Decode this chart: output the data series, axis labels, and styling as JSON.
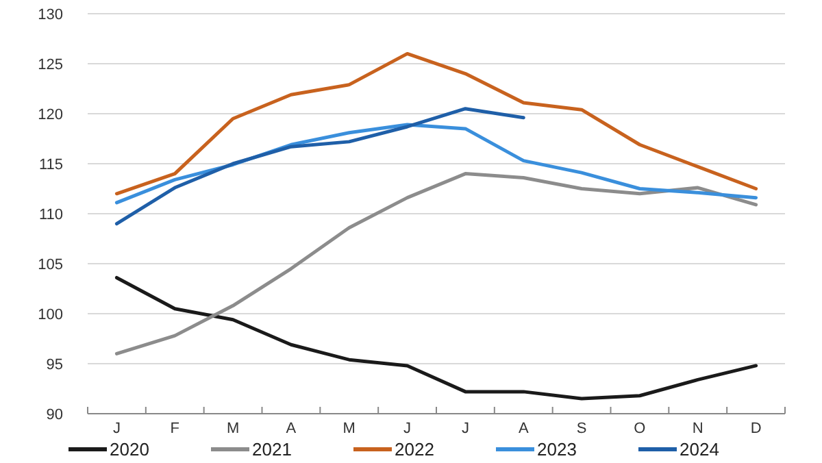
{
  "chart_data": {
    "type": "line",
    "categories": [
      "J",
      "F",
      "M",
      "A",
      "M",
      "J",
      "J",
      "A",
      "S",
      "O",
      "N",
      "D"
    ],
    "series": [
      {
        "name": "2020",
        "color": "#1a1a1a",
        "values": [
          103.6,
          100.5,
          99.4,
          96.9,
          95.4,
          94.8,
          92.2,
          92.2,
          91.5,
          91.8,
          93.4,
          94.8
        ]
      },
      {
        "name": "2021",
        "color": "#8c8c8c",
        "values": [
          96,
          97.8,
          100.8,
          104.5,
          108.6,
          111.6,
          114,
          113.6,
          112.5,
          112,
          112.6,
          110.9
        ]
      },
      {
        "name": "2022",
        "color": "#c8621e",
        "values": [
          112,
          114,
          119.5,
          121.9,
          122.9,
          126,
          124,
          121.1,
          120.4,
          116.9,
          114.7,
          112.5
        ]
      },
      {
        "name": "2023",
        "color": "#3a8fdc",
        "values": [
          111.1,
          113.4,
          114.9,
          116.9,
          118.1,
          118.9,
          118.5,
          115.3,
          114.1,
          112.5,
          112.1,
          111.6
        ]
      },
      {
        "name": "2024",
        "color": "#1f5fa8",
        "values": [
          109,
          112.6,
          115,
          116.7,
          117.2,
          118.7,
          120.5,
          119.6,
          null,
          null,
          null,
          null
        ]
      }
    ],
    "ylim": [
      90,
      130
    ],
    "yticks": [
      90,
      95,
      100,
      105,
      110,
      115,
      120,
      125,
      130
    ],
    "grid": "y",
    "legend": "bottom",
    "line_style": "solid",
    "marker": "none"
  }
}
